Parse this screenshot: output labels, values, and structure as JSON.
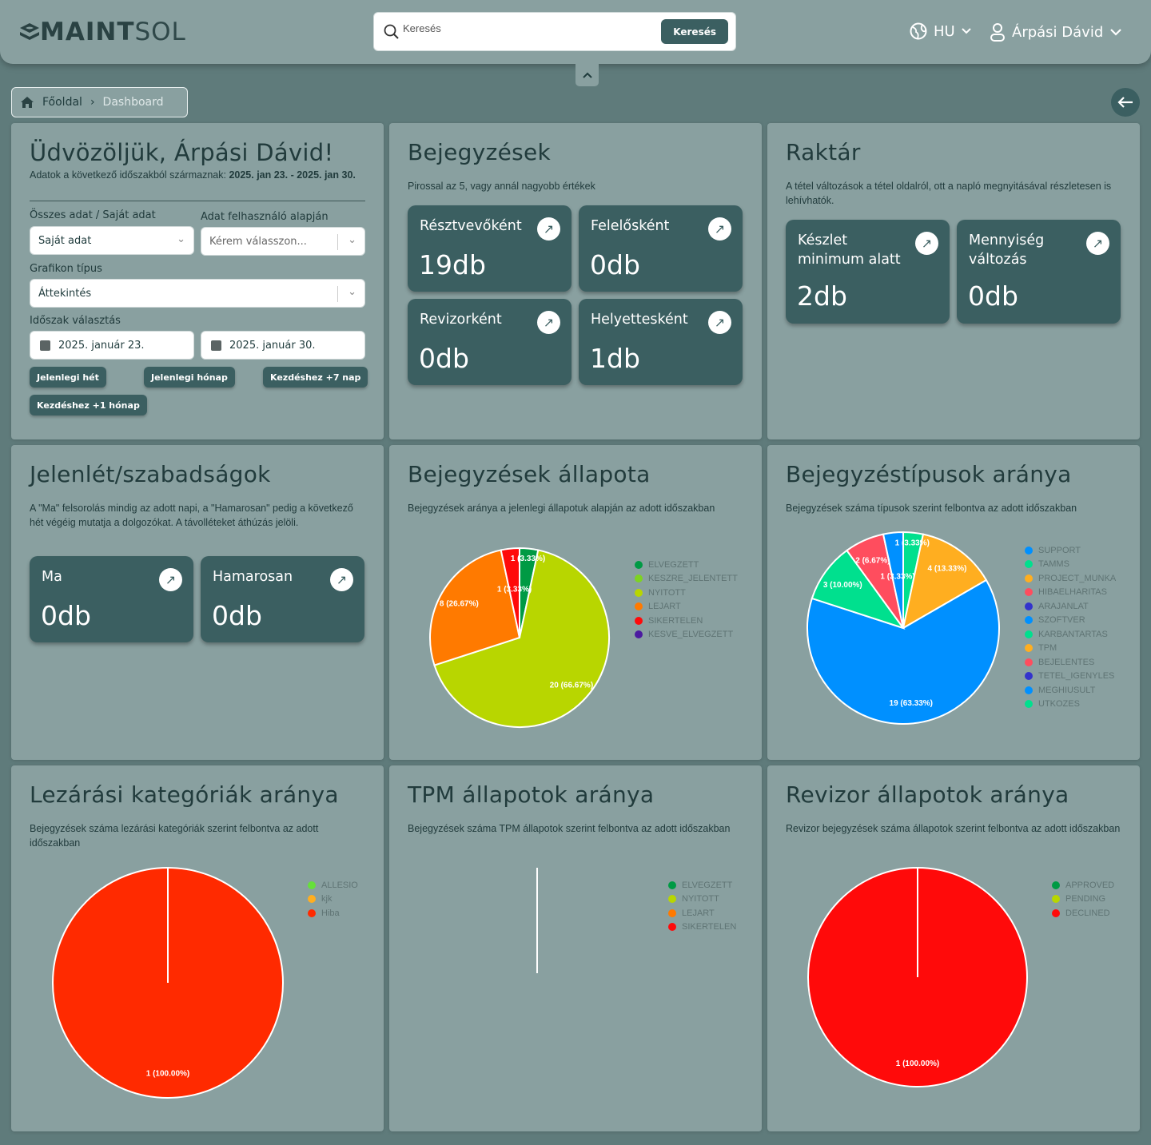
{
  "header": {
    "logo_bold": "MAINT",
    "logo_light": "SOL",
    "search_placeholder": "Keresés",
    "search_button": "Keresés",
    "language": "HU",
    "user_name": "Árpási Dávid"
  },
  "breadcrumb": {
    "home": "Főoldal",
    "current": "Dashboard"
  },
  "welcome": {
    "title": "Üdvözöljük, Árpási Dávid!",
    "period_text": "Adatok a következő időszakból származnak: ",
    "period_range": "2025. jan 23. - 2025. jan 30.",
    "data_scope_label": "Összes adat / Saját adat",
    "data_scope_value": "Saját adat",
    "user_filter_label": "Adat felhasználó alapján",
    "user_filter_placeholder": "Kérem válasszon...",
    "chart_type_label": "Grafikon típus",
    "chart_type_value": "Áttekintés",
    "period_label": "Időszak választás",
    "date_from": "2025. január 23.",
    "date_to": "2025. január 30.",
    "buttons": [
      "Jelenlegi hét",
      "Jelenlegi hónap",
      "Kezdéshez +7 nap",
      "Kezdéshez +1 hónap"
    ]
  },
  "entries": {
    "title": "Bejegyzések",
    "subtitle": "Pirossal az 5, vagy annál nagyobb értékek",
    "cards": [
      {
        "label": "Résztvevőként",
        "value": "19db"
      },
      {
        "label": "Felelősként",
        "value": "0db"
      },
      {
        "label": "Revizorként",
        "value": "0db"
      },
      {
        "label": "Helyettesként",
        "value": "1db"
      }
    ]
  },
  "warehouse": {
    "title": "Raktár",
    "subtitle": "A tétel változások a tétel oldalról, ott a napló megnyitásával részletesen is lehívhatók.",
    "cards": [
      {
        "label": "Készlet minimum alatt",
        "value": "2db"
      },
      {
        "label": "Mennyiség változás",
        "value": "0db"
      }
    ]
  },
  "attendance": {
    "title": "Jelenlét/szabadságok",
    "subtitle": "A \"Ma\" felsorolás mindig az adott napi, a \"Hamarosan\" pedig a következő hét végéig mutatja a dolgozókat. A távolléteket áthúzás jelöli.",
    "cards": [
      {
        "label": "Ma",
        "value": "0db"
      },
      {
        "label": "Hamarosan",
        "value": "0db"
      }
    ]
  },
  "panels": [
    {
      "title": "Bejegyzések állapota",
      "subtitle": "Bejegyzések aránya a jelenlegi állapotuk alapján az adott időszakban"
    },
    {
      "title": "Bejegyzéstípusok aránya",
      "subtitle": "Bejegyzések száma típusok szerint felbontva az adott időszakban"
    },
    {
      "title": "Lezárási kategóriák aránya",
      "subtitle": "Bejegyzések száma lezárási kategóriák szerint felbontva az adott időszakban"
    },
    {
      "title": "TPM állapotok aránya",
      "subtitle": "Bejegyzések száma TPM állapotok szerint felbontva az adott időszakban"
    },
    {
      "title": "Revizor állapotok aránya",
      "subtitle": "Revizor bejegyzések száma állapotok szerint felbontva az adott időszakban"
    }
  ],
  "chart_data": [
    {
      "type": "pie",
      "legend": "right",
      "categories": [
        "ELVEGZETT",
        "KESZRE_JELENTETT",
        "NYITOTT",
        "LEJART",
        "SIKERTELEN",
        "KESVE_ELVEGZETT"
      ],
      "values": [
        1,
        0,
        20,
        8,
        1,
        0
      ],
      "colors": [
        "#009a44",
        "#7ed321",
        "#b8d600",
        "#ff7a00",
        "#ff0a0a",
        "#4b1aa0"
      ],
      "data_labels": [
        "1 (3.33%)",
        "",
        "20 (66.67%)",
        "8 (26.67%)",
        "1 (3.33%)",
        ""
      ]
    },
    {
      "type": "pie",
      "legend": "right",
      "categories": [
        "SUPPORT",
        "TAMMS",
        "PROJECT_MUNKA",
        "HIBAELHARITAS",
        "ARAJANLAT",
        "SZOFTVER",
        "KARBANTARTAS",
        "TPM",
        "BEJELENTES",
        "TETEL_IGENYLES",
        "MEGHIUSULT",
        "UTKOZES"
      ],
      "values": [
        0,
        1,
        4,
        0,
        0,
        19,
        3,
        0,
        2,
        0,
        1,
        0
      ],
      "colors": [
        "#0090ff",
        "#00e08e",
        "#ffae20",
        "#ff4d5e",
        "#3333cc",
        "#0090ff",
        "#00e08e",
        "#ffae20",
        "#ff4d5e",
        "#3333cc",
        "#0090ff",
        "#00e08e"
      ],
      "data_labels": [
        "",
        "1 (3.33%)",
        "4 (13.33%)",
        "",
        "",
        "19 (63.33%)",
        "3 (10.00%)",
        "",
        "2 (6.67%)",
        "",
        "1 (3.33%)",
        ""
      ]
    },
    {
      "type": "pie",
      "legend": "right",
      "categories": [
        "ALLESIO",
        "kjk",
        "Hiba"
      ],
      "values": [
        0,
        0,
        1
      ],
      "colors": [
        "#66e03a",
        "#ffae20",
        "#ff2a00"
      ],
      "data_labels": [
        "",
        "",
        "1 (100.00%)"
      ]
    },
    {
      "type": "pie",
      "legend": "right",
      "categories": [
        "ELVEGZETT",
        "NYITOTT",
        "LEJART",
        "SIKERTELEN"
      ],
      "values": [
        0,
        0,
        0,
        0
      ],
      "colors": [
        "#009a44",
        "#b8d600",
        "#ff7a00",
        "#ff0a0a"
      ],
      "data_labels": [
        "",
        "",
        "",
        ""
      ]
    },
    {
      "type": "pie",
      "legend": "right",
      "categories": [
        "APPROVED",
        "PENDING",
        "DECLINED"
      ],
      "values": [
        0,
        0,
        1
      ],
      "colors": [
        "#009a44",
        "#b8d600",
        "#ff0a0a"
      ],
      "data_labels": [
        "",
        "",
        "1 (100.00%)"
      ]
    }
  ]
}
